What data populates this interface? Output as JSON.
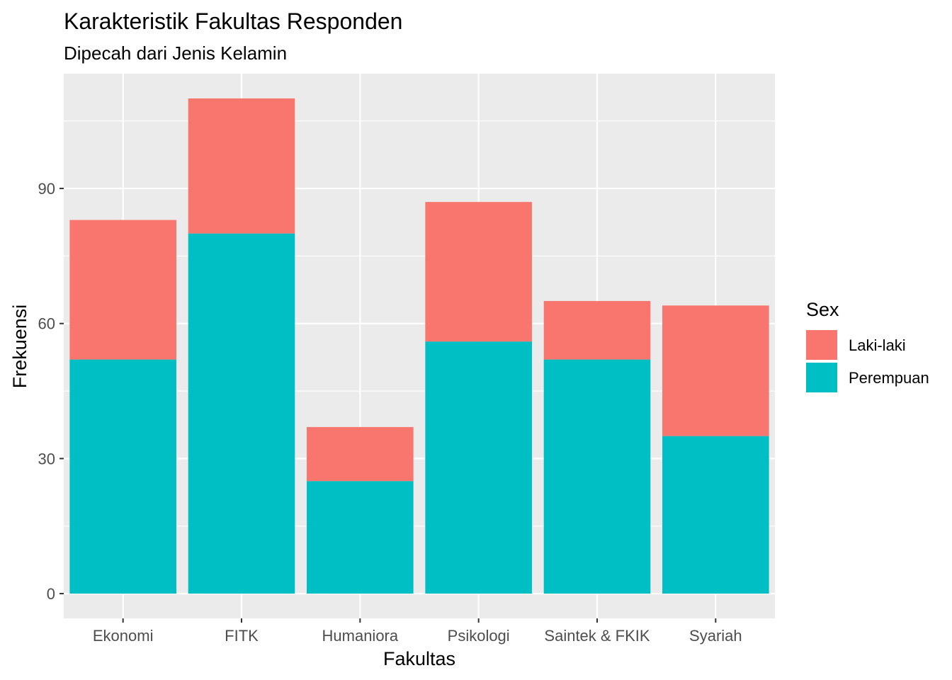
{
  "chart_data": {
    "type": "bar",
    "stacked": true,
    "title": "Karakteristik Fakultas Responden",
    "subtitle": "Dipecah dari Jenis Kelamin",
    "xlabel": "Fakultas",
    "ylabel": "Frekuensi",
    "categories": [
      "Ekonomi",
      "FITK",
      "Humaniora",
      "Psikologi",
      "Saintek & FKIK",
      "Syariah"
    ],
    "series": [
      {
        "name": "Perempuan",
        "color": "#00BFC4",
        "values": [
          52,
          80,
          25,
          56,
          52,
          35
        ]
      },
      {
        "name": "Laki-laki",
        "color": "#F8766D",
        "values": [
          31,
          30,
          12,
          31,
          13,
          29
        ]
      }
    ],
    "yticks": [
      0,
      30,
      60,
      90
    ],
    "ylim": [
      -5.5,
      115.5
    ],
    "grid": true,
    "panel_background": "#EBEBEB",
    "legend": {
      "title": "Sex",
      "position": "right",
      "items": [
        {
          "label": "Laki-laki",
          "color": "#F8766D"
        },
        {
          "label": "Perempuan",
          "color": "#00BFC4"
        }
      ]
    }
  }
}
